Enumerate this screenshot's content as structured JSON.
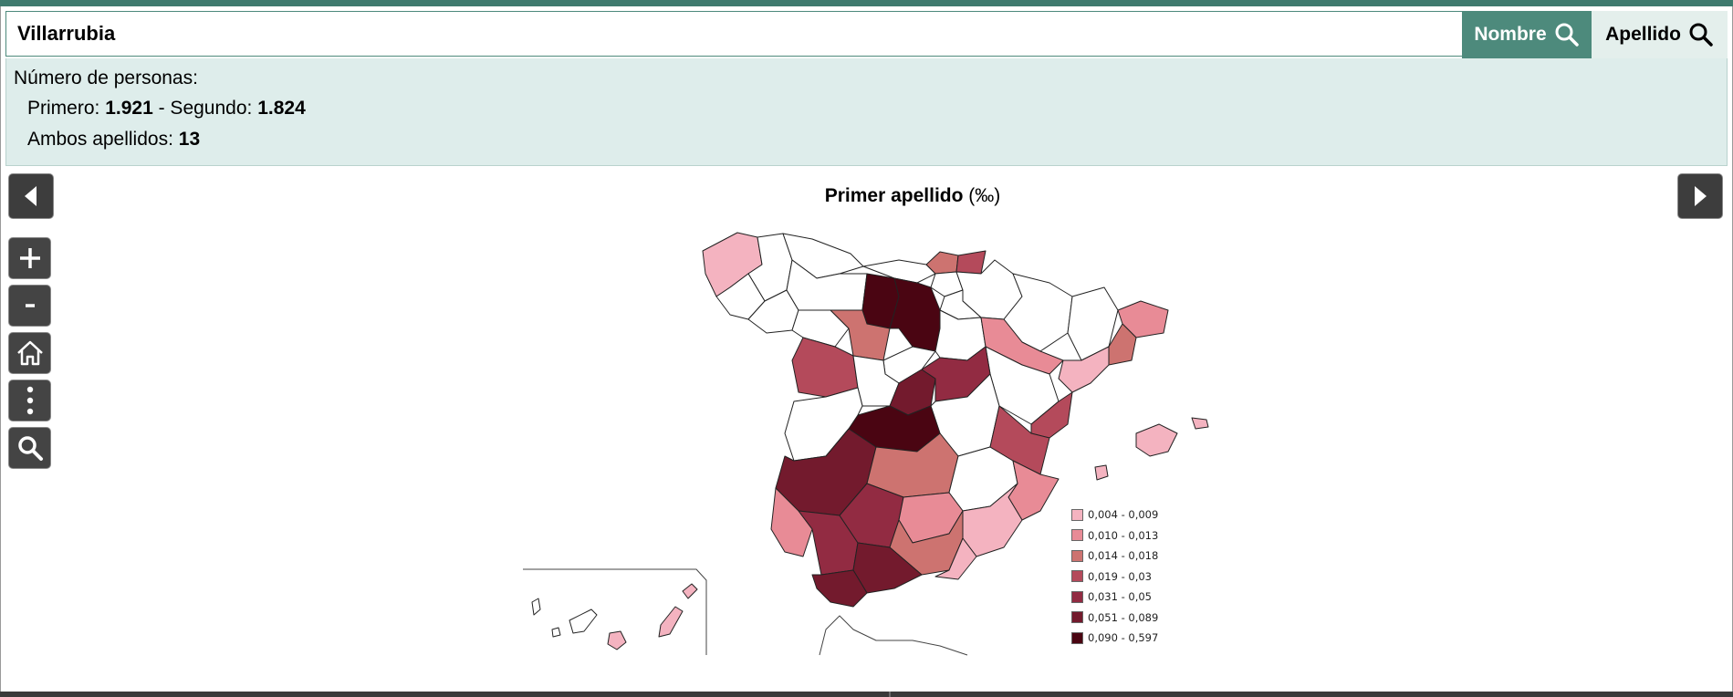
{
  "search": {
    "value": "Villarrubia"
  },
  "buttons": {
    "nombre": "Nombre",
    "apellido": "Apellido"
  },
  "info": {
    "label": "Número de personas:",
    "primero_label": "Primero:",
    "primero_value": "1.921",
    "segundo_label": "- Segundo:",
    "segundo_value": "1.824",
    "ambos_label": "Ambos apellidos:",
    "ambos_value": "13"
  },
  "map": {
    "title": "Primer apellido",
    "unit": "(‰)",
    "legend": [
      {
        "label": "0,004 - 0,009",
        "color": "#f4b3c0"
      },
      {
        "label": "0,010 - 0,013",
        "color": "#e88b96"
      },
      {
        "label": "0,014 - 0,018",
        "color": "#cd7370"
      },
      {
        "label": "0,019 - 0,03",
        "color": "#b44a5b"
      },
      {
        "label": "0,031 - 0,05",
        "color": "#922b42"
      },
      {
        "label": "0,051 - 0,089",
        "color": "#731a2d"
      },
      {
        "label": "0,090 - 0,597",
        "color": "#4a0512"
      }
    ]
  },
  "controls": [
    "zoom-in",
    "zoom-out",
    "home",
    "more-options",
    "search"
  ],
  "colors": {
    "accent": "#4d8a7c",
    "panel": "#deedeb",
    "control": "#444444"
  }
}
